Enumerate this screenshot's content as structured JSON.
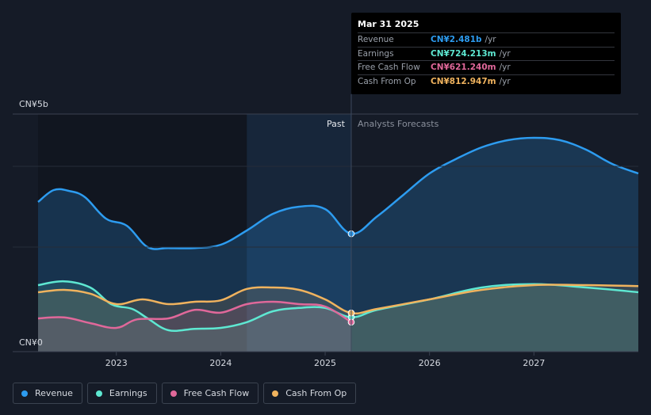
{
  "tooltip": {
    "date": "Mar 31 2025",
    "rows": [
      {
        "label": "Revenue",
        "value": "CN¥2.481b",
        "unit": "/yr",
        "color": "#2d9cf0"
      },
      {
        "label": "Earnings",
        "value": "CN¥724.213m",
        "unit": "/yr",
        "color": "#5ee8d2"
      },
      {
        "label": "Free Cash Flow",
        "value": "CN¥621.240m",
        "unit": "/yr",
        "color": "#e0689a"
      },
      {
        "label": "Cash From Op",
        "value": "CN¥812.947m",
        "unit": "/yr",
        "color": "#f0b35e"
      }
    ]
  },
  "labels": {
    "past": "Past",
    "forecast": "Analysts Forecasts"
  },
  "legend": [
    {
      "label": "Revenue",
      "color": "#2d9cf0"
    },
    {
      "label": "Earnings",
      "color": "#5ee8d2"
    },
    {
      "label": "Free Cash Flow",
      "color": "#e0689a"
    },
    {
      "label": "Cash From Op",
      "color": "#f0b35e"
    }
  ],
  "chart_data": {
    "type": "area",
    "y_tick_labels": [
      "CN¥5b",
      "CN¥0"
    ],
    "ylim": [
      0,
      5
    ],
    "xlim": [
      2022.25,
      2028.0
    ],
    "x_tick_labels": [
      "2023",
      "2024",
      "2025",
      "2026",
      "2027"
    ],
    "x_ticks": [
      2023,
      2024,
      2025,
      2026,
      2027
    ],
    "divider_x": 2025.25,
    "past_shade_start": 2024.25,
    "series": [
      {
        "name": "Revenue",
        "color": "#2d9cf0",
        "points": [
          [
            2022.25,
            3.15
          ],
          [
            2022.4,
            3.4
          ],
          [
            2022.55,
            3.38
          ],
          [
            2022.7,
            3.25
          ],
          [
            2022.9,
            2.8
          ],
          [
            2023.1,
            2.65
          ],
          [
            2023.3,
            2.2
          ],
          [
            2023.5,
            2.18
          ],
          [
            2023.75,
            2.18
          ],
          [
            2024.0,
            2.25
          ],
          [
            2024.25,
            2.55
          ],
          [
            2024.5,
            2.9
          ],
          [
            2024.75,
            3.05
          ],
          [
            2025.0,
            3.0
          ],
          [
            2025.25,
            2.481
          ],
          [
            2025.5,
            2.85
          ],
          [
            2025.75,
            3.3
          ],
          [
            2026.0,
            3.75
          ],
          [
            2026.25,
            4.05
          ],
          [
            2026.5,
            4.3
          ],
          [
            2026.75,
            4.45
          ],
          [
            2027.0,
            4.5
          ],
          [
            2027.25,
            4.45
          ],
          [
            2027.5,
            4.25
          ],
          [
            2027.75,
            3.95
          ],
          [
            2028.0,
            3.75
          ]
        ]
      },
      {
        "name": "Earnings",
        "color": "#5ee8d2",
        "points": [
          [
            2022.25,
            1.4
          ],
          [
            2022.5,
            1.48
          ],
          [
            2022.75,
            1.35
          ],
          [
            2022.95,
            1.0
          ],
          [
            2023.15,
            0.9
          ],
          [
            2023.3,
            0.7
          ],
          [
            2023.5,
            0.45
          ],
          [
            2023.75,
            0.48
          ],
          [
            2024.0,
            0.5
          ],
          [
            2024.25,
            0.62
          ],
          [
            2024.5,
            0.85
          ],
          [
            2024.75,
            0.92
          ],
          [
            2025.0,
            0.92
          ],
          [
            2025.25,
            0.724
          ],
          [
            2025.5,
            0.88
          ],
          [
            2026.0,
            1.1
          ],
          [
            2026.5,
            1.35
          ],
          [
            2027.0,
            1.42
          ],
          [
            2027.5,
            1.35
          ],
          [
            2028.0,
            1.25
          ]
        ]
      },
      {
        "name": "Free Cash Flow",
        "color": "#e0689a",
        "points": [
          [
            2022.25,
            0.7
          ],
          [
            2022.5,
            0.72
          ],
          [
            2022.75,
            0.6
          ],
          [
            2023.0,
            0.5
          ],
          [
            2023.2,
            0.68
          ],
          [
            2023.5,
            0.7
          ],
          [
            2023.75,
            0.88
          ],
          [
            2024.0,
            0.82
          ],
          [
            2024.25,
            1.0
          ],
          [
            2024.5,
            1.05
          ],
          [
            2024.75,
            1.0
          ],
          [
            2025.0,
            0.95
          ],
          [
            2025.25,
            0.621
          ]
        ]
      },
      {
        "name": "Cash From Op",
        "color": "#f0b35e",
        "points": [
          [
            2022.25,
            1.25
          ],
          [
            2022.5,
            1.3
          ],
          [
            2022.75,
            1.22
          ],
          [
            2023.0,
            1.0
          ],
          [
            2023.25,
            1.1
          ],
          [
            2023.5,
            1.0
          ],
          [
            2023.75,
            1.05
          ],
          [
            2024.0,
            1.08
          ],
          [
            2024.25,
            1.32
          ],
          [
            2024.5,
            1.35
          ],
          [
            2024.75,
            1.3
          ],
          [
            2025.0,
            1.1
          ],
          [
            2025.25,
            0.813
          ],
          [
            2025.5,
            0.9
          ],
          [
            2026.0,
            1.1
          ],
          [
            2026.5,
            1.3
          ],
          [
            2027.0,
            1.4
          ],
          [
            2027.5,
            1.4
          ],
          [
            2028.0,
            1.38
          ]
        ]
      }
    ]
  }
}
